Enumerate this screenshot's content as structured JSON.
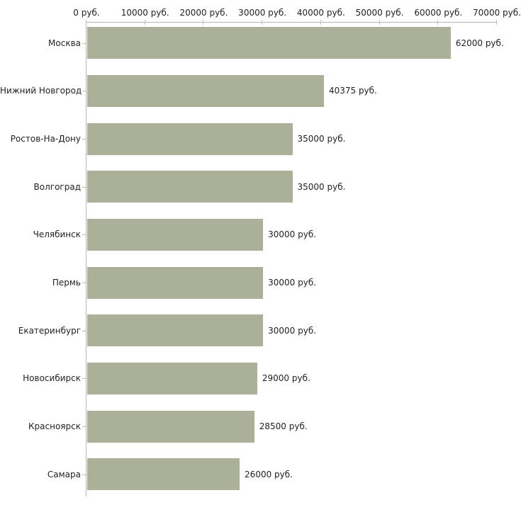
{
  "chart_data": {
    "type": "bar",
    "orientation": "horizontal",
    "title": "",
    "categories": [
      "Москва",
      "Нижний Новгород",
      "Ростов-На-Дону",
      "Волгоград",
      "Челябинск",
      "Пермь",
      "Екатеринбург",
      "Новосибирск",
      "Красноярск",
      "Самара"
    ],
    "values": [
      62000,
      40375,
      35000,
      35000,
      30000,
      30000,
      30000,
      29000,
      28500,
      26000
    ],
    "value_labels": [
      "62000 руб.",
      "40375 руб.",
      "35000 руб.",
      "35000 руб.",
      "30000 руб.",
      "30000 руб.",
      "30000 руб.",
      "29000 руб.",
      "28500 руб.",
      "26000 руб."
    ],
    "x_axis": {
      "position": "top",
      "min": 0,
      "max": 70000,
      "ticks": [
        0,
        10000,
        20000,
        30000,
        40000,
        50000,
        60000,
        70000
      ],
      "tick_labels": [
        "0 руб.",
        "10000 руб.",
        "20000 руб.",
        "30000 руб.",
        "40000 руб.",
        "50000 руб.",
        "60000 руб.",
        "70000 руб."
      ]
    },
    "legend": "none",
    "grid": "off",
    "colors": {
      "bar": "#abb198",
      "axis_line": "#b5b5b5",
      "tick_mark": "#c8c08f",
      "text": "#1f1f1f",
      "background": "#ffffff"
    }
  }
}
